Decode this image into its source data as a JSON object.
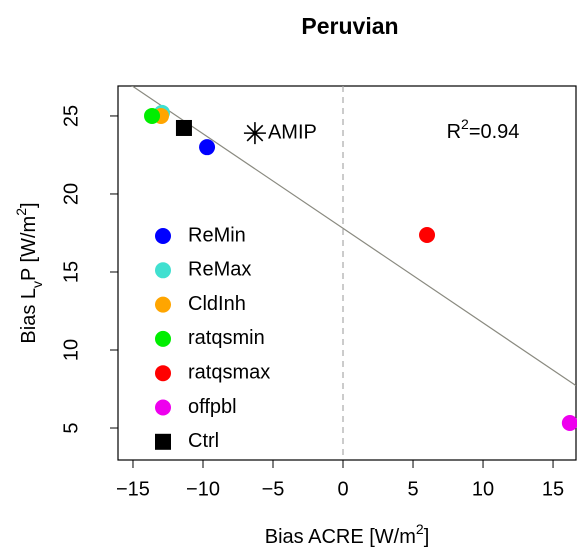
{
  "chart_data": {
    "type": "scatter",
    "title": "Peruvian",
    "x_label": [
      "Bias ACRE [W/m",
      "2",
      "]"
    ],
    "y_label": [
      "Bias L",
      "v",
      "P [W/m",
      "2",
      "]"
    ],
    "xlim": [
      -16.07,
      16.64
    ],
    "ylim": [
      2.95,
      26.92
    ],
    "xticks": [
      {
        "value": -15,
        "label": "−15"
      },
      {
        "value": -10,
        "label": "−10"
      },
      {
        "value": -5,
        "label": "−5"
      },
      0,
      5,
      10,
      15
    ],
    "yticks": [
      5,
      10,
      15,
      20,
      25
    ],
    "vline": 0,
    "fit": {
      "intercept": 17.8,
      "slope": -0.606,
      "color": "#8a8a80"
    },
    "annotation": [
      "R",
      "2",
      "=0.94"
    ],
    "series": [
      {
        "name": "ReMin",
        "color": "#0000ff",
        "marker": "circle",
        "x": [
          -9.71
        ],
        "values": [
          23.0
        ]
      },
      {
        "name": "ReMax",
        "color": "#40e0d0",
        "marker": "circle",
        "x": [
          -12.93
        ],
        "values": [
          25.2
        ]
      },
      {
        "name": "CldInh",
        "color": "#ffa500",
        "marker": "circle",
        "x": [
          -13.0
        ],
        "values": [
          25.0
        ]
      },
      {
        "name": "ratqsmin",
        "color": "#00ee00",
        "marker": "circle",
        "x": [
          -13.64
        ],
        "values": [
          25.0
        ]
      },
      {
        "name": "ratqsmax",
        "color": "#ff0000",
        "marker": "circle",
        "x": [
          6.0
        ],
        "values": [
          17.37
        ]
      },
      {
        "name": "offpbl",
        "color": "#ee00ee",
        "marker": "circle",
        "x": [
          16.2
        ],
        "values": [
          5.32
        ]
      },
      {
        "name": "Ctrl",
        "color": "#000000",
        "marker": "square",
        "x": [
          -11.36
        ],
        "values": [
          24.23
        ]
      },
      {
        "name": "AMIP",
        "color": "#000000",
        "marker": "star",
        "in_legend": false,
        "x": [
          -6.29
        ],
        "values": [
          23.9
        ]
      }
    ]
  }
}
